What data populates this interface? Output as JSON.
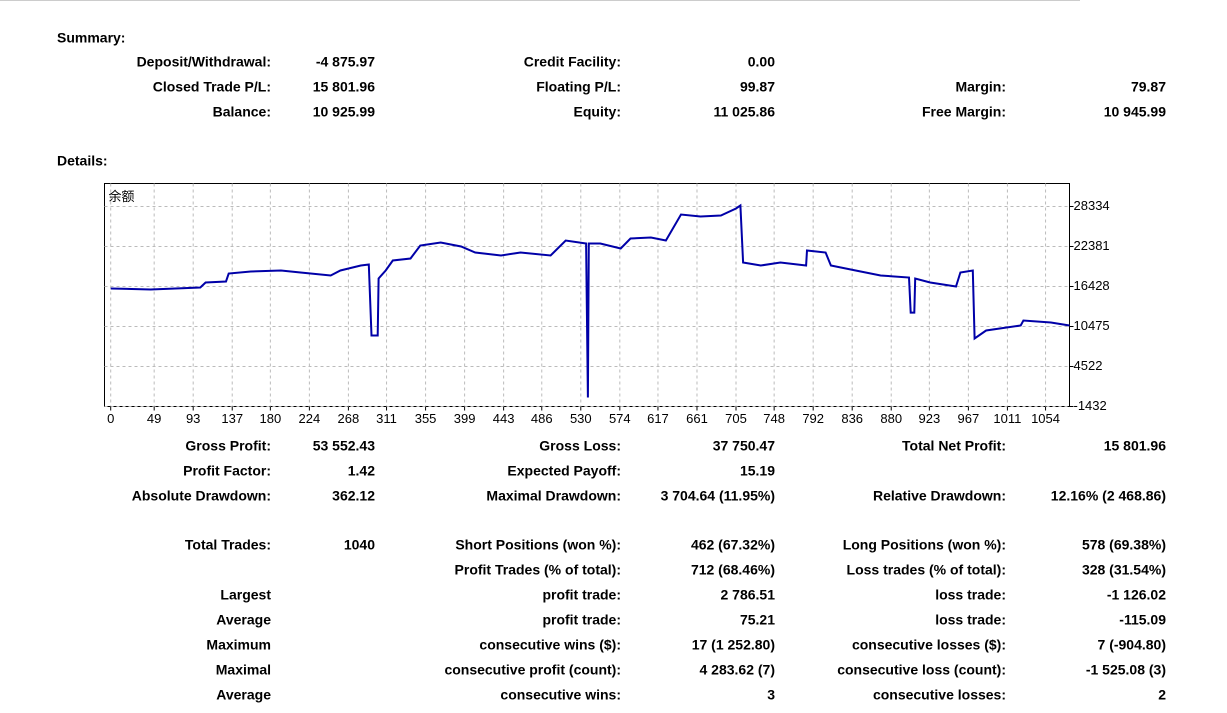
{
  "summary": {
    "title": "Summary:",
    "rows": [
      [
        "Deposit/Withdrawal:",
        "-4 875.97",
        "Credit Facility:",
        "0.00",
        null,
        null
      ],
      [
        "Closed Trade P/L:",
        "15 801.96",
        "Floating P/L:",
        "99.87",
        "Margin:",
        "79.87"
      ],
      [
        "Balance:",
        "10 925.99",
        "Equity:",
        "11 025.86",
        "Free Margin:",
        "10 945.99"
      ]
    ]
  },
  "details": {
    "title": "Details:",
    "rows": [
      [
        "Gross Profit:",
        "53 552.43",
        "Gross Loss:",
        "37 750.47",
        "Total Net Profit:",
        "15 801.96"
      ],
      [
        "Profit Factor:",
        "1.42",
        "Expected Payoff:",
        "15.19",
        null,
        null
      ],
      [
        "Absolute Drawdown:",
        "362.12",
        "Maximal Drawdown:",
        "3 704.64 (11.95%)",
        "Relative Drawdown:",
        "12.16% (2 468.86)"
      ],
      [
        "Total Trades:",
        "1040",
        "Short Positions (won %):",
        "462 (67.32%)",
        "Long Positions (won %):",
        "578 (69.38%)"
      ],
      [
        null,
        null,
        "Profit Trades (% of total):",
        "712 (68.46%)",
        "Loss trades (% of total):",
        "328 (31.54%)"
      ],
      [
        "Largest",
        null,
        "profit trade:",
        "2 786.51",
        "loss trade:",
        "-1 126.02"
      ],
      [
        "Average",
        null,
        "profit trade:",
        "75.21",
        "loss trade:",
        "-115.09"
      ],
      [
        "Maximum",
        null,
        "consecutive wins ($):",
        "17 (1 252.80)",
        "consecutive losses ($):",
        "7 (-904.80)"
      ],
      [
        "Maximal",
        null,
        "consecutive profit (count):",
        "4 283.62 (7)",
        "consecutive loss (count):",
        "-1 525.08 (3)"
      ],
      [
        "Average",
        null,
        "consecutive wins:",
        "3",
        "consecutive losses:",
        "2"
      ]
    ]
  },
  "chart_data": {
    "type": "line",
    "x": [
      0,
      45,
      101,
      107,
      130,
      133,
      158,
      192,
      214,
      248,
      259,
      282,
      291,
      294,
      301,
      302,
      310,
      318,
      338,
      349,
      372,
      395,
      411,
      440,
      462,
      496,
      513,
      536,
      538,
      539,
      552,
      575,
      586,
      609,
      626,
      643,
      665,
      688,
      705,
      710,
      713,
      733,
      755,
      784,
      785,
      806,
      812,
      840,
      868,
      900,
      902,
      906,
      907,
      924,
      953,
      958,
      972,
      974,
      987,
      1026,
      1029,
      1060,
      1081
    ],
    "series": [
      {
        "name": "余额",
        "color": "#0000a8",
        "values": [
          16130,
          15981,
          16279,
          17023,
          17172,
          18363,
          18660,
          18809,
          18512,
          18065,
          18809,
          19553,
          19702,
          9136,
          9136,
          17619,
          18809,
          20297,
          20595,
          22530,
          22976,
          22381,
          21488,
          21041,
          21488,
          21041,
          23274,
          22827,
          -92,
          22827,
          22827,
          22083,
          23572,
          23721,
          23274,
          27143,
          26845,
          26994,
          28036,
          28483,
          20000,
          19553,
          20000,
          19553,
          21786,
          21488,
          19553,
          18809,
          18065,
          17768,
          12548,
          12548,
          17619,
          17023,
          16428,
          18512,
          18809,
          8689,
          9880,
          10624,
          11368,
          11071,
          10624
        ]
      }
    ],
    "xlim": [
      -7,
      1081
    ],
    "ylim": [
      -1432,
      31757
    ],
    "xticks": [
      0,
      49,
      93,
      137,
      180,
      224,
      268,
      311,
      355,
      399,
      443,
      486,
      530,
      574,
      617,
      661,
      705,
      748,
      792,
      836,
      880,
      923,
      967,
      1011,
      1054
    ],
    "yticks": [
      28334,
      22381,
      16428,
      10475,
      4522,
      -1432
    ],
    "grid": true
  }
}
